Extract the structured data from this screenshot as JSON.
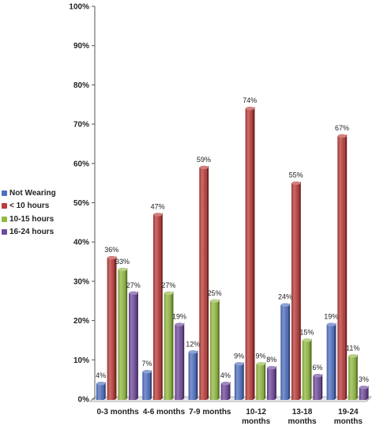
{
  "chart_data": {
    "type": "bar",
    "title": "",
    "xlabel": "",
    "ylabel": "",
    "ylim": [
      0,
      100
    ],
    "yticks": [
      "0%",
      "10%",
      "20%",
      "30%",
      "40%",
      "50%",
      "60%",
      "70%",
      "80%",
      "90%",
      "100%"
    ],
    "categories": [
      [
        "0-3 months"
      ],
      [
        "4-6 months"
      ],
      [
        "7-9 months"
      ],
      [
        "10-12",
        "months"
      ],
      [
        "13-18",
        "months"
      ],
      [
        "19-24",
        "months"
      ]
    ],
    "series": [
      {
        "name": "Not Wearing",
        "color": "#4f6fbf",
        "values": [
          4,
          7,
          12,
          9,
          24,
          19
        ],
        "labels": [
          "4%",
          "7%",
          "12%",
          "9%",
          "24%",
          "19%"
        ]
      },
      {
        "name": "< 10 hours",
        "color": "#b83c3a",
        "values": [
          36,
          47,
          59,
          74,
          55,
          67
        ],
        "labels": [
          "36%",
          "47%",
          "59%",
          "74%",
          "55%",
          "67%"
        ]
      },
      {
        "name": "10-15 hours",
        "color": "#93b843",
        "values": [
          33,
          27,
          25,
          9,
          15,
          11
        ],
        "labels": [
          "33%",
          "27%",
          "25%",
          "9%",
          "15%",
          "11%"
        ]
      },
      {
        "name": "16-24 hours",
        "color": "#6f4a9a",
        "values": [
          27,
          19,
          4,
          8,
          6,
          3
        ],
        "labels": [
          "27%",
          "19%",
          "4%",
          "8%",
          "6%",
          "3%"
        ]
      }
    ],
    "legend_position": "left",
    "grid": false
  }
}
